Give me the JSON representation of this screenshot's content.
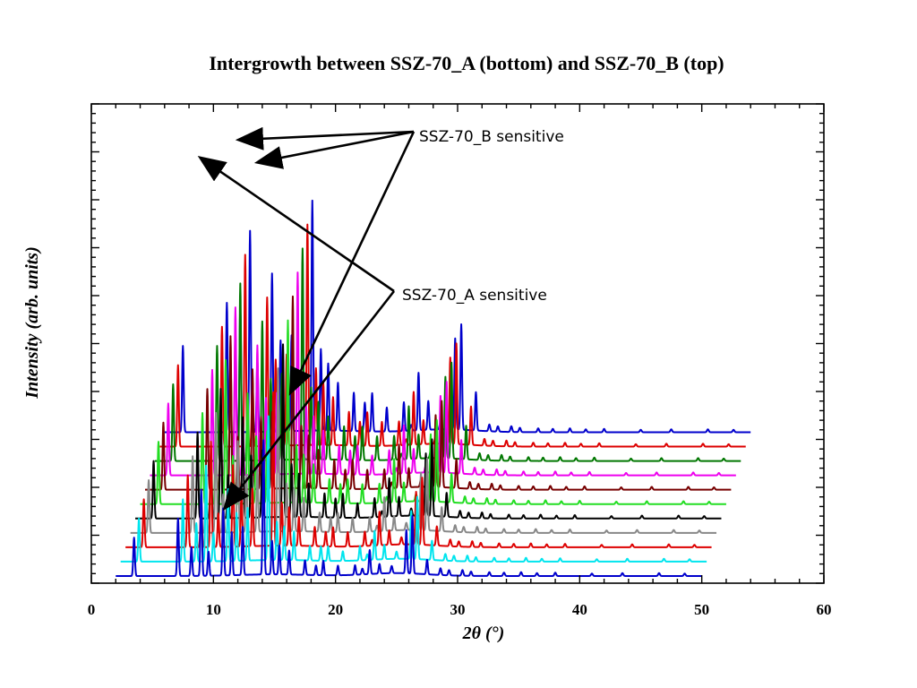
{
  "chart_data": {
    "type": "line",
    "title": "Intergrowth between SSZ-70_A (bottom) and SSZ-70_B (top)",
    "xlabel": "2θ (°)",
    "ylabel": "Intensity (arb. units)",
    "xlim": [
      0,
      60
    ],
    "xticks": [
      "0",
      "10",
      "20",
      "30",
      "40",
      "50",
      "60"
    ],
    "ylim": [
      0,
      100
    ],
    "y_tick_labels_shown": false,
    "stacked_offset": true,
    "x_shift_per_series": 0.4,
    "y_offset_per_series": 3,
    "x_range": [
      2,
      50
    ],
    "peak_positions": [
      3.5,
      7.1,
      8.2,
      9.0,
      9.6,
      10.8,
      11.5,
      12.4,
      14.1,
      14.8,
      15.4,
      16.2,
      17.5,
      18.4,
      19.0,
      20.2,
      21.6,
      22.8,
      23.6,
      25.8,
      26.3,
      27.5
    ],
    "series": [
      {
        "color": "#0000cc",
        "peaks": [
          8,
          12,
          6,
          18,
          5,
          14,
          9,
          10,
          28,
          7,
          6,
          5,
          3,
          2,
          3,
          2,
          2,
          5,
          2,
          9,
          12,
          3
        ]
      },
      {
        "color": "#00e5ee",
        "peaks": [
          9,
          13,
          8,
          20,
          6,
          15,
          10,
          11,
          30,
          8,
          7,
          6,
          3,
          3,
          3,
          2,
          3,
          6,
          3,
          10,
          13,
          4
        ]
      },
      {
        "color": "#dd0000",
        "peaks": [
          10,
          15,
          10,
          22,
          7,
          17,
          11,
          12,
          32,
          9,
          8,
          6,
          4,
          3,
          4,
          3,
          3,
          7,
          3,
          11,
          14,
          4
        ]
      },
      {
        "color": "#888888",
        "peaks": [
          11,
          16,
          12,
          25,
          8,
          19,
          12,
          13,
          34,
          10,
          9,
          7,
          4,
          3,
          4,
          3,
          3,
          7,
          3,
          12,
          15,
          5
        ]
      },
      {
        "color": "#000000",
        "peaks": [
          12,
          18,
          14,
          27,
          9,
          21,
          13,
          14,
          36,
          11,
          9,
          7,
          5,
          4,
          5,
          3,
          4,
          8,
          4,
          13,
          16,
          5
        ]
      },
      {
        "color": "#22dd22",
        "peaks": [
          13,
          19,
          16,
          30,
          10,
          23,
          14,
          15,
          38,
          12,
          10,
          8,
          5,
          4,
          5,
          4,
          4,
          9,
          4,
          14,
          17,
          6
        ]
      },
      {
        "color": "#770000",
        "peaks": [
          14,
          21,
          18,
          32,
          11,
          25,
          15,
          16,
          40,
          13,
          11,
          8,
          6,
          4,
          6,
          4,
          4,
          9,
          4,
          15,
          18,
          6
        ]
      },
      {
        "color": "#ee00ee",
        "peaks": [
          15,
          22,
          20,
          35,
          12,
          27,
          16,
          17,
          42,
          14,
          12,
          9,
          6,
          5,
          6,
          4,
          5,
          10,
          5,
          16,
          19,
          7
        ]
      },
      {
        "color": "#007700",
        "peaks": [
          16,
          24,
          22,
          37,
          13,
          29,
          17,
          18,
          44,
          15,
          12,
          9,
          7,
          5,
          7,
          5,
          5,
          11,
          5,
          17,
          20,
          7
        ]
      },
      {
        "color": "#dd0000",
        "peaks": [
          17,
          25,
          24,
          40,
          14,
          31,
          18,
          19,
          46,
          16,
          13,
          10,
          7,
          5,
          7,
          5,
          5,
          11,
          5,
          18,
          21,
          8
        ]
      },
      {
        "color": "#0000cc",
        "peaks": [
          18,
          27,
          26,
          42,
          15,
          33,
          19,
          20,
          48,
          17,
          14,
          10,
          8,
          6,
          8,
          5,
          6,
          12,
          6,
          19,
          22,
          8
        ]
      }
    ],
    "annotations": [
      "SSZ-70_B sensitive",
      "SSZ-70_A sensitive"
    ],
    "grid": false,
    "legend": "none"
  }
}
